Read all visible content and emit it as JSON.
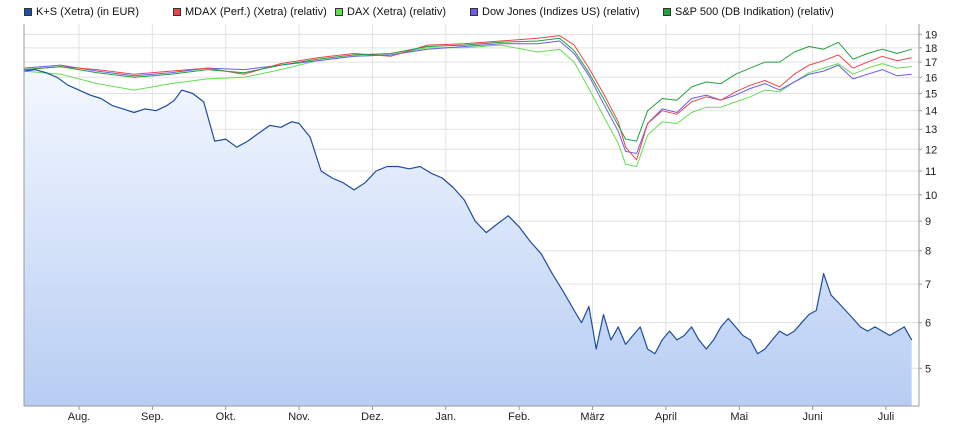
{
  "chart_data": {
    "type": "line",
    "legend_placement": "top",
    "grid": true,
    "y_scale": "log",
    "ylim": [
      4.3,
      19.8
    ],
    "y_ticks": [
      5,
      6,
      7,
      8,
      9,
      10,
      11,
      12,
      13,
      14,
      15,
      16,
      17,
      18,
      19
    ],
    "x_tick_labels": [
      "Aug.",
      "Sep.",
      "Okt.",
      "Nov.",
      "Dez.",
      "Jan.",
      "Feb.",
      "März",
      "April",
      "Mai",
      "Juni",
      "Juli"
    ],
    "x_tick_positions": [
      0.75,
      1.75,
      2.75,
      3.75,
      4.75,
      5.75,
      6.75,
      7.75,
      8.75,
      9.75,
      10.75,
      11.75
    ],
    "x_range": [
      0,
      12.2
    ],
    "series": [
      {
        "name": "K+S (Xetra) (in EUR)",
        "color": "#1f4e9c",
        "filled": true,
        "x": [
          0,
          0.15,
          0.3,
          0.45,
          0.6,
          0.75,
          0.9,
          1.05,
          1.2,
          1.35,
          1.5,
          1.65,
          1.8,
          1.95,
          2.05,
          2.15,
          2.3,
          2.45,
          2.6,
          2.75,
          2.9,
          3.05,
          3.2,
          3.35,
          3.5,
          3.65,
          3.75,
          3.9,
          4.05,
          4.2,
          4.35,
          4.5,
          4.65,
          4.8,
          4.95,
          5.1,
          5.25,
          5.4,
          5.55,
          5.7,
          5.85,
          6.0,
          6.15,
          6.3,
          6.45,
          6.6,
          6.75,
          6.9,
          7.05,
          7.2,
          7.35,
          7.5,
          7.6,
          7.7,
          7.8,
          7.9,
          8.0,
          8.1,
          8.2,
          8.3,
          8.4,
          8.5,
          8.6,
          8.7,
          8.8,
          8.9,
          9.0,
          9.1,
          9.2,
          9.3,
          9.4,
          9.5,
          9.6,
          9.7,
          9.8,
          9.9,
          10.0,
          10.1,
          10.2,
          10.3,
          10.4,
          10.5,
          10.6,
          10.7,
          10.8,
          10.9,
          11.0,
          11.1,
          11.2,
          11.3,
          11.4,
          11.5,
          11.6,
          11.7,
          11.8,
          11.9,
          12.0,
          12.1
        ],
        "y": [
          16.4,
          16.5,
          16.3,
          16.0,
          15.5,
          15.2,
          14.9,
          14.7,
          14.3,
          14.1,
          13.9,
          14.1,
          14.0,
          14.3,
          14.6,
          15.2,
          15.0,
          14.5,
          12.4,
          12.5,
          12.1,
          12.4,
          12.8,
          13.2,
          13.1,
          13.4,
          13.3,
          12.6,
          11.0,
          10.7,
          10.5,
          10.2,
          10.5,
          11.0,
          11.2,
          11.2,
          11.1,
          11.2,
          10.9,
          10.7,
          10.3,
          9.8,
          9.0,
          8.6,
          8.9,
          9.2,
          8.8,
          8.3,
          7.9,
          7.3,
          6.8,
          6.3,
          6.0,
          6.4,
          5.4,
          6.2,
          5.6,
          5.9,
          5.5,
          5.7,
          5.9,
          5.4,
          5.3,
          5.6,
          5.8,
          5.6,
          5.7,
          5.9,
          5.6,
          5.4,
          5.6,
          5.9,
          6.1,
          5.9,
          5.7,
          5.6,
          5.3,
          5.4,
          5.6,
          5.8,
          5.7,
          5.8,
          6.0,
          6.2,
          6.3,
          7.3,
          6.7,
          6.5,
          6.3,
          6.1,
          5.9,
          5.8,
          5.9,
          5.8,
          5.7,
          5.8,
          5.9,
          5.6
        ]
      },
      {
        "name": "MDAX (Perf.) (Xetra) (relativ)",
        "color": "#e8474a",
        "x": [
          0,
          0.5,
          1,
          1.5,
          2,
          2.5,
          3,
          3.5,
          4,
          4.5,
          5,
          5.5,
          6,
          6.5,
          7,
          7.3,
          7.5,
          7.7,
          7.9,
          8.1,
          8.2,
          8.35,
          8.5,
          8.7,
          8.9,
          9.1,
          9.3,
          9.5,
          9.7,
          9.9,
          10.1,
          10.3,
          10.5,
          10.7,
          10.9,
          11.1,
          11.3,
          11.5,
          11.7,
          11.9,
          12.1
        ],
        "y": [
          16.5,
          16.7,
          16.5,
          16.2,
          16.4,
          16.6,
          16.2,
          16.9,
          17.3,
          17.6,
          17.4,
          18.2,
          18.3,
          18.5,
          18.7,
          18.9,
          18.2,
          16.6,
          15.0,
          13.4,
          12.1,
          11.5,
          13.3,
          14.0,
          13.8,
          14.5,
          14.8,
          14.6,
          15.1,
          15.5,
          15.8,
          15.4,
          16.2,
          16.8,
          17.1,
          17.5,
          16.6,
          17.0,
          17.4,
          17.1,
          17.3
        ]
      },
      {
        "name": "DAX (Xetra) (relativ)",
        "color": "#66dd55",
        "x": [
          0,
          0.5,
          1,
          1.5,
          2,
          2.5,
          3,
          3.5,
          4,
          4.5,
          5,
          5.5,
          6,
          6.5,
          7,
          7.3,
          7.5,
          7.7,
          7.9,
          8.1,
          8.2,
          8.35,
          8.5,
          8.7,
          8.9,
          9.1,
          9.3,
          9.5,
          9.7,
          9.9,
          10.1,
          10.3,
          10.5,
          10.7,
          10.9,
          11.1,
          11.3,
          11.5,
          11.7,
          11.9,
          12.1
        ],
        "y": [
          16.4,
          16.2,
          15.6,
          15.2,
          15.6,
          15.9,
          16.0,
          16.5,
          17.1,
          17.4,
          17.5,
          18.0,
          18.0,
          18.2,
          17.7,
          17.9,
          17.0,
          15.3,
          13.7,
          12.3,
          11.3,
          11.2,
          12.7,
          13.4,
          13.3,
          13.9,
          14.2,
          14.2,
          14.5,
          14.8,
          15.2,
          15.1,
          15.7,
          16.3,
          16.6,
          16.9,
          16.2,
          16.6,
          16.9,
          16.6,
          16.7
        ]
      },
      {
        "name": "Dow Jones (Indizes US) (relativ)",
        "color": "#6a5ee8",
        "x": [
          0,
          0.5,
          1,
          1.5,
          2,
          2.5,
          3,
          3.5,
          4,
          4.5,
          5,
          5.5,
          6,
          6.5,
          7,
          7.3,
          7.5,
          7.7,
          7.9,
          8.1,
          8.2,
          8.35,
          8.5,
          8.7,
          8.9,
          9.1,
          9.3,
          9.5,
          9.7,
          9.9,
          10.1,
          10.3,
          10.5,
          10.7,
          10.9,
          11.1,
          11.3,
          11.5,
          11.7,
          11.9,
          12.1
        ],
        "y": [
          16.6,
          16.8,
          16.4,
          16.1,
          16.3,
          16.6,
          16.5,
          16.8,
          17.1,
          17.4,
          17.5,
          17.9,
          18.1,
          18.3,
          18.3,
          18.5,
          17.6,
          16.1,
          14.4,
          12.9,
          11.9,
          11.8,
          13.3,
          14.1,
          13.9,
          14.7,
          14.9,
          14.6,
          14.9,
          15.3,
          15.6,
          15.2,
          15.7,
          16.2,
          16.4,
          16.8,
          15.9,
          16.2,
          16.5,
          16.1,
          16.2
        ]
      },
      {
        "name": "S&P 500 (DB Indikation) (relativ)",
        "color": "#21a03c",
        "x": [
          0,
          0.5,
          1,
          1.5,
          2,
          2.5,
          3,
          3.5,
          4,
          4.5,
          5,
          5.5,
          6,
          6.5,
          7,
          7.3,
          7.5,
          7.7,
          7.9,
          8.1,
          8.2,
          8.35,
          8.5,
          8.7,
          8.9,
          9.1,
          9.3,
          9.5,
          9.7,
          9.9,
          10.1,
          10.3,
          10.5,
          10.7,
          10.9,
          11.1,
          11.3,
          11.5,
          11.7,
          11.9,
          12.1
        ],
        "y": [
          16.5,
          16.7,
          16.3,
          16.0,
          16.2,
          16.5,
          16.3,
          16.8,
          17.2,
          17.5,
          17.6,
          18.1,
          18.2,
          18.4,
          18.5,
          18.7,
          17.8,
          16.3,
          14.7,
          13.2,
          12.5,
          12.4,
          14.0,
          14.7,
          14.6,
          15.4,
          15.7,
          15.6,
          16.2,
          16.6,
          17.0,
          17.0,
          17.7,
          18.1,
          17.9,
          18.4,
          17.2,
          17.6,
          17.9,
          17.6,
          17.9
        ]
      }
    ]
  }
}
